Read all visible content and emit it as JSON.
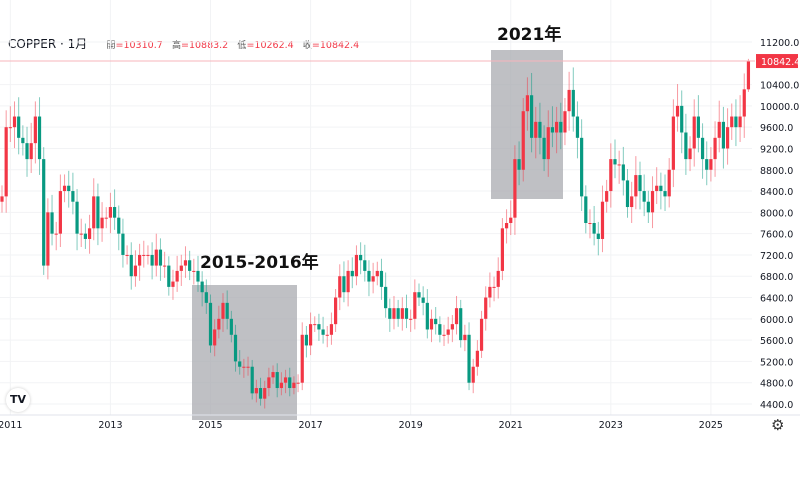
{
  "header": {
    "symbol": "COPPER · 1月",
    "open_label": "開",
    "open": "10310.7",
    "high_label": "高",
    "high": "10883.2",
    "low_label": "低",
    "low": "10262.4",
    "close_label": "收",
    "close": "10842.4"
  },
  "annotations": [
    {
      "label": "2015-2016年",
      "from": "2015-01",
      "to": "2016-12"
    },
    {
      "label": "2021年",
      "from": "2021-01",
      "to": "2021-12"
    }
  ],
  "colors": {
    "up": "#f23645",
    "down": "#089981",
    "highlight": "#a9abb0"
  },
  "chart_data": {
    "type": "candlestick",
    "interval": "1M",
    "start": "2010-11",
    "first_open": 8200,
    "close": [
      8300,
      9600,
      9600,
      9800,
      9400,
      9300,
      9000,
      9300,
      9800,
      9000,
      7000,
      8000,
      7600,
      7600,
      8400,
      8500,
      8400,
      8200,
      7600,
      7600,
      7500,
      7700,
      8300,
      7700,
      7900,
      7900,
      8100,
      7900,
      7600,
      7200,
      7200,
      6800,
      7000,
      7200,
      7200,
      7200,
      7000,
      7300,
      7000,
      7000,
      6600,
      6700,
      6900,
      7000,
      7100,
      6900,
      6900,
      6700,
      6500,
      6300,
      5500,
      5800,
      6000,
      6300,
      6000,
      5700,
      5200,
      5100,
      5100,
      5100,
      4600,
      4700,
      4500,
      4700,
      4900,
      5000,
      4700,
      4800,
      4900,
      4700,
      4800,
      4800,
      5700,
      5500,
      5900,
      5900,
      5800,
      5700,
      5700,
      5900,
      6400,
      6800,
      6500,
      6900,
      6800,
      7200,
      7100,
      6900,
      6700,
      6800,
      6900,
      6600,
      6200,
      6000,
      6200,
      6000,
      6200,
      6000,
      6000,
      6500,
      6400,
      6300,
      5800,
      6000,
      5900,
      5700,
      5700,
      5800,
      5900,
      6200,
      5600,
      5700,
      4800,
      5100,
      5400,
      6000,
      6400,
      6600,
      6600,
      6900,
      7700,
      7800,
      7900,
      9000,
      8800,
      9900,
      10200,
      9400,
      9700,
      9400,
      9000,
      9600,
      9500,
      9700,
      9500,
      9900,
      10300,
      9800,
      9400,
      8300,
      7800,
      7800,
      7600,
      7500,
      8200,
      8400,
      9000,
      8900,
      8900,
      8600,
      8100,
      8300,
      8700,
      8400,
      8200,
      8000,
      8400,
      8500,
      8400,
      8300,
      8800,
      9800,
      10000,
      9500,
      9000,
      9200,
      9800,
      9400,
      9000,
      8800,
      9000,
      9400,
      9700,
      9200,
      9600,
      9800,
      9600,
      9800,
      10310.7,
      10842.4
    ],
    "last_high": 10883.2,
    "last_low": 10262.4,
    "y_ticks": [
      "11200.0",
      "10400.0",
      "10000.0",
      "9600.0",
      "9200.0",
      "8800.0",
      "8400.0",
      "8000.0",
      "7600.0",
      "7200.0",
      "6800.0",
      "6400.0",
      "6000.0",
      "5600.0",
      "5200.0",
      "4800.0",
      "4400.0"
    ],
    "x_ticks": [
      "2011",
      "2013",
      "2015",
      "2017",
      "2019",
      "2021",
      "2023",
      "2025"
    ],
    "ylim": [
      4400,
      11200
    ],
    "last_price_label": "10842.4"
  }
}
